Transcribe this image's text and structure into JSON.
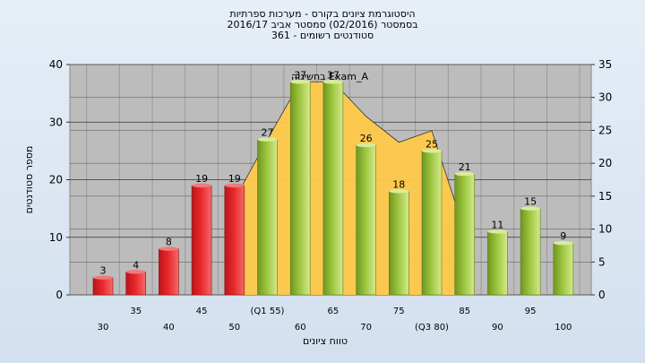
{
  "title_lines": [
    "היסטוגרמת ציונים בקורס - מערכות ספרתיות",
    "בסמסטר  (02/2016)  סמסטר אביב 2016/17",
    "סטודנטים רשומים - 361"
  ],
  "chart_data": {
    "type": "bar",
    "xlabel": "טווח ציונים",
    "ylabel": "מספר סטודנטים",
    "categories": [
      "30",
      "35",
      "40",
      "45",
      "50",
      "(Q1 55)",
      "60",
      "65",
      "70",
      "75",
      "(Q3 80)",
      "85",
      "90",
      "95",
      "100"
    ],
    "values": [
      3,
      4,
      8,
      19,
      19,
      27,
      37,
      37,
      26,
      18,
      25,
      21,
      11,
      15,
      9
    ],
    "bar_colors": [
      "red",
      "red",
      "red",
      "red",
      "red",
      "green",
      "green",
      "green",
      "green",
      "green",
      "green",
      "green",
      "green",
      "green",
      "green"
    ],
    "ylim_left": [
      0,
      40
    ],
    "yticks_left": [
      0,
      10,
      20,
      30,
      40
    ],
    "ylim_right": [
      0,
      35
    ],
    "yticks_right": [
      0,
      5,
      10,
      15,
      20,
      25,
      30,
      35
    ],
    "area_series": {
      "color": "#ffc94a",
      "categories": [
        "50",
        "(Q1 55)",
        "60",
        "65",
        "70",
        "75",
        "(Q3 80)",
        "85"
      ],
      "values": [
        16.5,
        27,
        37,
        37,
        31,
        26.5,
        28.5,
        11
      ]
    },
    "annotation": "בחשיגוה Exam_A",
    "grid": true
  },
  "colors": {
    "plot_bg": "#bcbcbc",
    "red_bar": "#e8262a",
    "green_bar": "#9cc43e",
    "area": "#ffc94a"
  }
}
